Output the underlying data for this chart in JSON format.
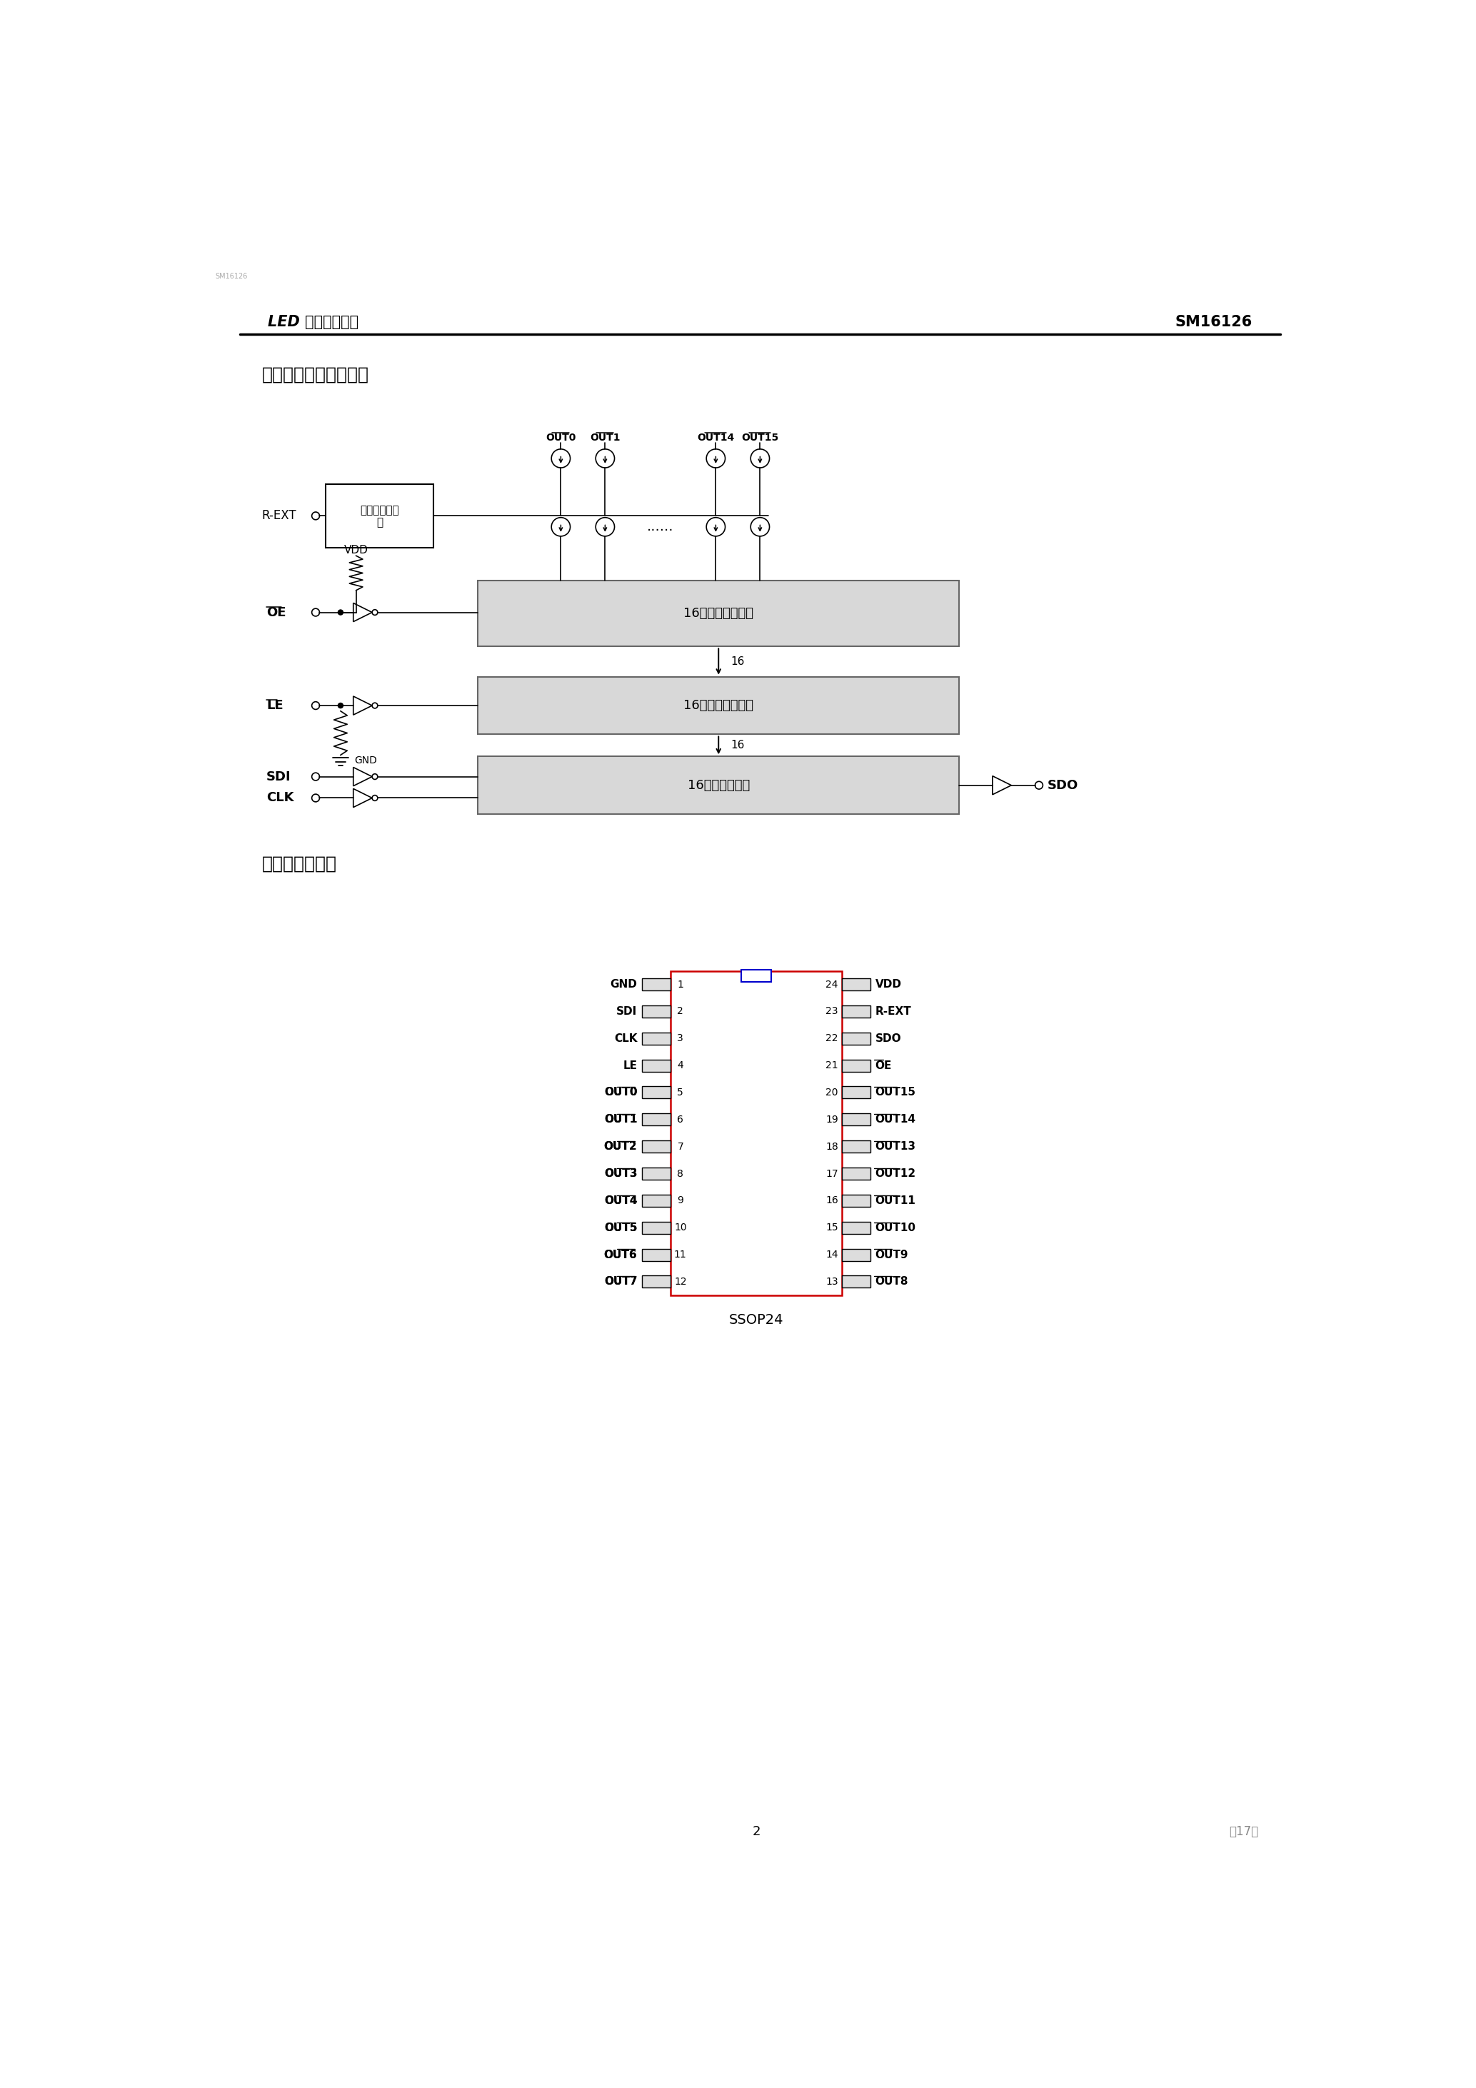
{
  "page_title_left": "LED 恒流驱动芯片",
  "page_title_right": "SM16126",
  "section4_title": "四、内部功能简单框图",
  "section5_title": "五、封装示意图",
  "block_driver": "16位位输出驱动器",
  "block_latch": "16位位输出锁存器",
  "block_shift": "16位位移寄存器",
  "block_current_line1": "输出电流调节",
  "block_current_line2": "器",
  "label_rext": "R-EXT",
  "label_oe": "OE",
  "label_le": "LE",
  "label_sdi": "SDI",
  "label_clk": "CLK",
  "label_sdo": "SDO",
  "label_vdd": "VDD",
  "label_gnd": "GND",
  "label_out0": "OUT0",
  "label_out1": "OUT1",
  "label_out14": "OUT14",
  "label_out15": "OUT15",
  "label_16": "16",
  "label_dots": "......",
  "package_label": "SSOP24",
  "left_pins": [
    "GND",
    "SDI",
    "CLK",
    "LE",
    "OUT0",
    "OUT1",
    "OUT2",
    "OUT3",
    "OUT4",
    "OUT5",
    "OUT6",
    "OUT7"
  ],
  "right_pins": [
    "VDD",
    "R-EXT",
    "SDO",
    "OE",
    "OUT15",
    "OUT14",
    "OUT13",
    "OUT12",
    "OUT11",
    "OUT10",
    "OUT9",
    "OUT8"
  ],
  "left_pin_nums": [
    1,
    2,
    3,
    4,
    5,
    6,
    7,
    8,
    9,
    10,
    11,
    12
  ],
  "right_pin_nums": [
    24,
    23,
    22,
    21,
    20,
    19,
    18,
    17,
    16,
    15,
    14,
    13
  ],
  "overline_left": [
    "OUT0",
    "OUT1",
    "OUT2",
    "OUT3",
    "OUT4",
    "OUT5",
    "OUT6",
    "OUT7"
  ],
  "overline_right": [
    "OE",
    "OUT15",
    "OUT14",
    "OUT13",
    "OUT12",
    "OUT11",
    "OUT10",
    "OUT9",
    "OUT8"
  ],
  "overline_schematic": [
    "OUT0",
    "OUT1",
    "OUT14",
    "OUT15",
    "OE",
    "LE"
  ],
  "bg_color": "#ffffff",
  "text_color": "#000000",
  "pin_notch_color": "#cc0000",
  "footer_page": "2",
  "footer_total": "共17页"
}
